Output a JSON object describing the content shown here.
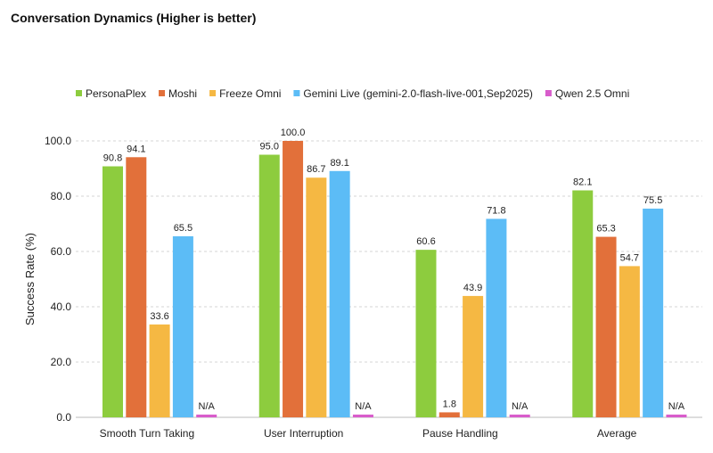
{
  "chart_data": {
    "type": "bar",
    "title": "Conversation Dynamics (Higher is better)",
    "ylabel": "Success Rate (%)",
    "xlabel": "",
    "ylim": [
      0,
      100
    ],
    "yticks": [
      "0.0",
      "20.0",
      "40.0",
      "60.0",
      "80.0",
      "100.0"
    ],
    "grid": true,
    "legend": "top",
    "categories": [
      "Smooth Turn Taking",
      "User Interruption",
      "Pause Handling",
      "Average"
    ],
    "series": [
      {
        "name": "PersonaPlex",
        "color": "#8dcc3e",
        "values": [
          90.8,
          95.0,
          60.6,
          82.1
        ],
        "labels": [
          "90.8",
          "95.0",
          "60.6",
          "82.1"
        ]
      },
      {
        "name": "Moshi",
        "color": "#e2703a",
        "values": [
          94.1,
          100.0,
          1.8,
          65.3
        ],
        "labels": [
          "94.1",
          "100.0",
          "1.8",
          "65.3"
        ]
      },
      {
        "name": "Freeze Omni",
        "color": "#f5b843",
        "values": [
          33.6,
          86.7,
          43.9,
          54.7
        ],
        "labels": [
          "33.6",
          "86.7",
          "43.9",
          "54.7"
        ]
      },
      {
        "name": "Gemini Live (gemini-2.0-flash-live-001,Sep2025)",
        "color": "#5cbcf6",
        "values": [
          65.5,
          89.1,
          71.8,
          75.5
        ],
        "labels": [
          "65.5",
          "89.1",
          "71.8",
          "75.5"
        ]
      },
      {
        "name": "Qwen 2.5 Omni",
        "color": "#d85ccb",
        "values": [
          null,
          null,
          null,
          null
        ],
        "labels": [
          "N/A",
          "N/A",
          "N/A",
          "N/A"
        ]
      }
    ]
  }
}
